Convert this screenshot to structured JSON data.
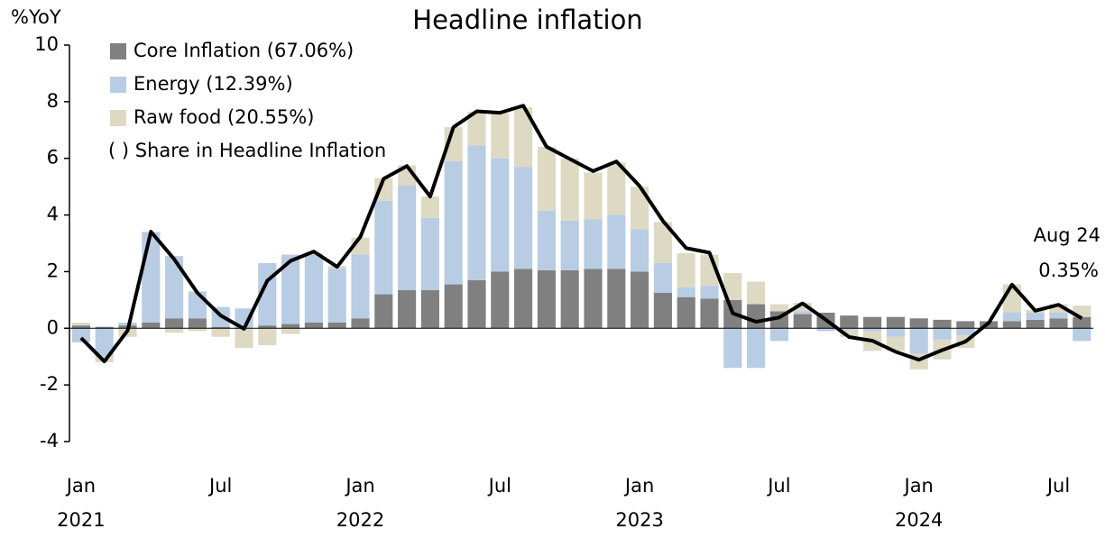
{
  "chart_data": {
    "type": "stacked-bar-line",
    "title": "Headline inflation",
    "y_label": "%YoY",
    "categories": [
      "Jan",
      null,
      null,
      null,
      null,
      null,
      "Jul",
      null,
      null,
      null,
      null,
      null,
      "Jan",
      null,
      null,
      null,
      null,
      null,
      "Jul",
      null,
      null,
      null,
      null,
      null,
      "Jan",
      null,
      null,
      null,
      null,
      null,
      "Jul",
      null,
      null,
      null,
      null,
      null,
      "Jan",
      null,
      null,
      null,
      null,
      null,
      "Jul",
      null
    ],
    "years": [
      "2021",
      "2022",
      "2023",
      "2024"
    ],
    "series": [
      {
        "name": "Core Inflation (67.06%)",
        "kind": "bar",
        "color": "#808080",
        "values": [
          0.1,
          0.05,
          0.1,
          0.2,
          0.35,
          0.35,
          0.05,
          0.0,
          0.1,
          0.15,
          0.2,
          0.2,
          0.35,
          1.2,
          1.35,
          1.35,
          1.55,
          1.7,
          2.0,
          2.1,
          2.05,
          2.05,
          2.1,
          2.1,
          2.0,
          1.25,
          1.1,
          1.05,
          1.0,
          0.85,
          0.6,
          0.5,
          0.55,
          0.45,
          0.4,
          0.4,
          0.35,
          0.3,
          0.25,
          0.25,
          0.25,
          0.3,
          0.35,
          0.4
        ]
      },
      {
        "name": "Energy (12.39%)",
        "kind": "bar",
        "color": "#b8cce4",
        "values": [
          -0.5,
          -1.0,
          0.1,
          3.2,
          2.2,
          0.95,
          0.7,
          0.7,
          2.2,
          2.45,
          2.4,
          1.9,
          2.25,
          3.3,
          3.7,
          2.55,
          4.35,
          4.75,
          4.0,
          3.6,
          2.1,
          1.75,
          1.75,
          1.9,
          1.5,
          1.05,
          0.35,
          0.45,
          -1.4,
          -1.4,
          -0.45,
          0.1,
          -0.1,
          -0.05,
          -0.1,
          -0.3,
          -0.9,
          -0.4,
          -0.25,
          0,
          0.3,
          0.25,
          0.2,
          -0.45
        ]
      },
      {
        "name": "Raw food (20.55%)",
        "kind": "bar",
        "color": "#ddd9c3",
        "values": [
          0.1,
          -0.2,
          -0.3,
          0,
          -0.15,
          -0.1,
          -0.3,
          -0.7,
          -0.6,
          -0.2,
          0.05,
          0.1,
          0.6,
          0.8,
          0.7,
          0.75,
          1.2,
          1.2,
          1.6,
          2.1,
          2.25,
          2.2,
          1.65,
          1.85,
          1.5,
          1.45,
          1.2,
          1.1,
          0.95,
          0.8,
          0.25,
          0.3,
          0.0,
          -0.25,
          -0.7,
          -0.5,
          -0.55,
          -0.7,
          -0.45,
          0,
          1.0,
          0.1,
          0.3,
          0.4
        ]
      },
      {
        "name": "Headline",
        "kind": "line",
        "color": "#000000",
        "values": [
          -0.34,
          -1.17,
          -0.08,
          3.41,
          2.44,
          1.25,
          0.45,
          -0.02,
          1.68,
          2.38,
          2.71,
          2.17,
          3.23,
          5.28,
          5.73,
          4.65,
          7.1,
          7.66,
          7.61,
          7.86,
          6.41,
          5.98,
          5.55,
          5.89,
          5.02,
          3.79,
          2.83,
          2.67,
          0.53,
          0.23,
          0.38,
          0.88,
          0.3,
          -0.31,
          -0.44,
          -0.83,
          -1.11,
          -0.77,
          -0.47,
          0.19,
          1.54,
          0.62,
          0.83,
          0.35
        ]
      }
    ],
    "legend_note": "( ) Share in Headline Inflation",
    "annotations": [
      "Aug 24",
      "0.35%"
    ],
    "ylim": [
      -4,
      10
    ],
    "yticks": [
      -4,
      -2,
      0,
      2,
      4,
      6,
      8,
      10
    ],
    "grid": false
  }
}
